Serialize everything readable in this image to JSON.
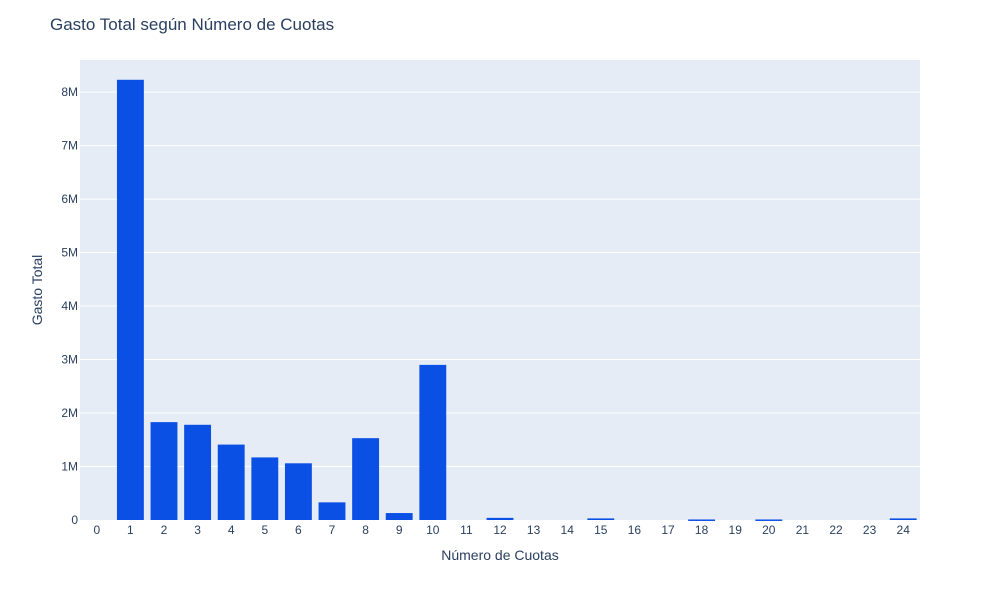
{
  "chart_data": {
    "type": "bar",
    "title": "Gasto Total según Número de Cuotas",
    "xlabel": "Número de Cuotas",
    "ylabel": "Gasto Total",
    "x": [
      0,
      1,
      2,
      3,
      4,
      5,
      6,
      7,
      8,
      9,
      10,
      11,
      12,
      13,
      14,
      15,
      16,
      17,
      18,
      19,
      20,
      21,
      22,
      23,
      24
    ],
    "values": [
      0,
      8230000,
      1830000,
      1780000,
      1410000,
      1170000,
      1060000,
      330000,
      1530000,
      130000,
      2900000,
      0,
      40000,
      0,
      0,
      30000,
      0,
      0,
      10000,
      0,
      10000,
      0,
      0,
      0,
      30000
    ],
    "ylim": [
      0,
      8600000
    ],
    "y_ticks": [
      0,
      1000000,
      2000000,
      3000000,
      4000000,
      5000000,
      6000000,
      7000000,
      8000000
    ],
    "y_tick_labels": [
      "0",
      "1M",
      "2M",
      "3M",
      "4M",
      "5M",
      "6M",
      "7M",
      "8M"
    ],
    "x_tick_labels": [
      "0",
      "1",
      "2",
      "3",
      "4",
      "5",
      "6",
      "7",
      "8",
      "9",
      "10",
      "11",
      "12",
      "13",
      "14",
      "15",
      "16",
      "17",
      "18",
      "19",
      "20",
      "21",
      "22",
      "23",
      "24"
    ],
    "grid": true,
    "colors": {
      "bar": "#0b50e4",
      "plot_bg": "#e5ecf6",
      "grid": "#ffffff",
      "text": "#2a3f5f"
    }
  }
}
